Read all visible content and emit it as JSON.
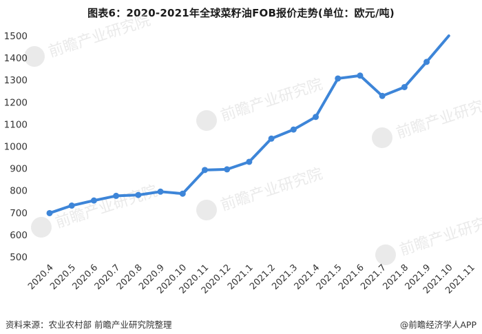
{
  "title": "图表6：2020-2021年全球菜籽油FOB报价走势(单位：欧元/吨)",
  "footer": {
    "source": "资料来源：农业农村部 前瞻产业研究院整理",
    "brand": "@前瞻经济学人APP"
  },
  "watermark": {
    "text": "前瞻产业研究院"
  },
  "colors": {
    "line": "#3d85d8",
    "marker": "#3d85d8",
    "axis_text": "#333333",
    "watermark": "#d9d9d9"
  },
  "chart_data": {
    "type": "line",
    "x": [
      "2020.4",
      "2020.5",
      "2020.6",
      "2020.7",
      "2020.8",
      "2020.9",
      "2020.10",
      "2020.11",
      "2020.12",
      "2021.1",
      "2021.2",
      "2021.3",
      "2021.4",
      "2021.5",
      "2021.6",
      "2021.7",
      "2021.8",
      "2021.9",
      "2021.10",
      "2021.11"
    ],
    "series": [
      {
        "values": [
          698,
          732,
          755,
          776,
          780,
          795,
          786,
          893,
          896,
          930,
          1035,
          1076,
          1133,
          1307,
          1320,
          1228,
          1268,
          1382,
          1500,
          null
        ]
      }
    ],
    "ylim": [
      500,
      1500
    ],
    "yticks": [
      500,
      600,
      700,
      800,
      900,
      1000,
      1100,
      1200,
      1300,
      1400,
      1500
    ],
    "grid": false,
    "legend": "none"
  }
}
